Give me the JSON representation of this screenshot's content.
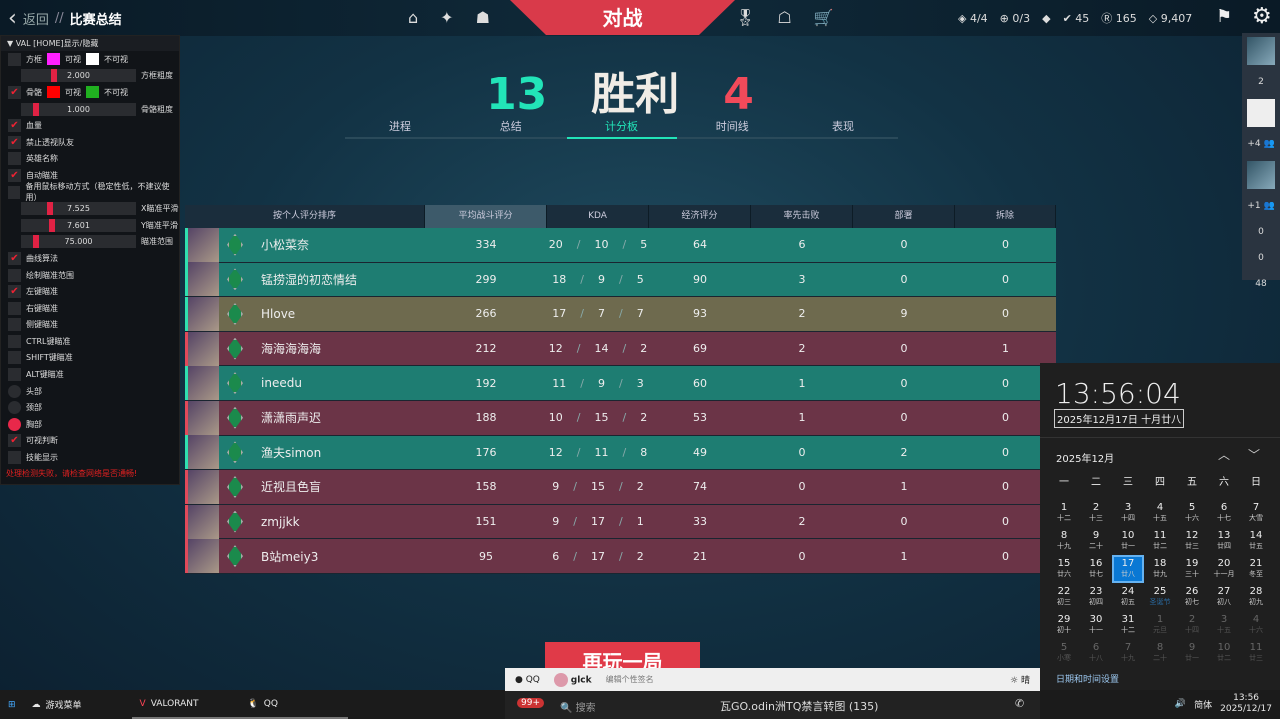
{
  "header": {
    "back": "返回",
    "sep": "//",
    "title": "比赛总结",
    "mode": "对战",
    "nav_left_icons": [
      "home-icon",
      "pass-icon",
      "agent-icon"
    ],
    "nav_right_icons": [
      "medal-icon",
      "collection-icon",
      "cart-icon"
    ],
    "stats": [
      {
        "icon": "diamond-icon",
        "glyph": "◈",
        "value": "4/4"
      },
      {
        "icon": "plus-circle-icon",
        "glyph": "⊕",
        "value": "0/3"
      },
      {
        "icon": "card-icon",
        "glyph": "◆",
        "value": ""
      },
      {
        "icon": "kingdom-credit-icon",
        "glyph": "✔",
        "value": "45"
      },
      {
        "icon": "radianite-icon",
        "glyph": "Ⓡ",
        "value": "165"
      },
      {
        "icon": "vp-icon",
        "glyph": "◇",
        "value": "9,407"
      }
    ]
  },
  "score": {
    "ally": "13",
    "result": "胜利",
    "enemy": "4",
    "ally_color": "#22e4b8",
    "enemy_color": "#f24a5a"
  },
  "tabs": [
    {
      "label": "进程"
    },
    {
      "label": "总结"
    },
    {
      "label": "计分板",
      "active": true
    },
    {
      "label": "时间线"
    },
    {
      "label": "表现"
    }
  ],
  "table": {
    "headers": [
      "按个人评分排序",
      "平均战斗评分",
      "KDA",
      "经济评分",
      "率先击败",
      "部署",
      "拆除"
    ],
    "rows": [
      {
        "team": "ally",
        "name": "小松菜奈",
        "acs": "334",
        "k": "20",
        "d": "10",
        "a": "5",
        "econ": "64",
        "fb": "6",
        "plants": "0",
        "defuses": "0"
      },
      {
        "team": "ally",
        "name": "锰捞湿的初恋情结",
        "acs": "299",
        "k": "18",
        "d": "9",
        "a": "5",
        "econ": "90",
        "fb": "3",
        "plants": "0",
        "defuses": "0"
      },
      {
        "team": "self",
        "name": "Hlove",
        "acs": "266",
        "k": "17",
        "d": "7",
        "a": "7",
        "econ": "93",
        "fb": "2",
        "plants": "9",
        "defuses": "0"
      },
      {
        "team": "enemy",
        "name": "海海海海海",
        "acs": "212",
        "k": "12",
        "d": "14",
        "a": "2",
        "econ": "69",
        "fb": "2",
        "plants": "0",
        "defuses": "1"
      },
      {
        "team": "ally",
        "name": "ineedu",
        "acs": "192",
        "k": "11",
        "d": "9",
        "a": "3",
        "econ": "60",
        "fb": "1",
        "plants": "0",
        "defuses": "0"
      },
      {
        "team": "enemy",
        "name": "潇潇雨声迟",
        "acs": "188",
        "k": "10",
        "d": "15",
        "a": "2",
        "econ": "53",
        "fb": "1",
        "plants": "0",
        "defuses": "0"
      },
      {
        "team": "ally",
        "name": "渔夫simon",
        "acs": "176",
        "k": "12",
        "d": "11",
        "a": "8",
        "econ": "49",
        "fb": "0",
        "plants": "2",
        "defuses": "0"
      },
      {
        "team": "enemy",
        "name": "近视且色盲",
        "acs": "158",
        "k": "9",
        "d": "15",
        "a": "2",
        "econ": "74",
        "fb": "0",
        "plants": "1",
        "defuses": "0"
      },
      {
        "team": "enemy",
        "name": "zmjjkk",
        "acs": "151",
        "k": "9",
        "d": "17",
        "a": "1",
        "econ": "33",
        "fb": "2",
        "plants": "0",
        "defuses": "0"
      },
      {
        "team": "enemy",
        "name": "B站meiy3",
        "acs": "95",
        "k": "6",
        "d": "17",
        "a": "2",
        "econ": "21",
        "fb": "0",
        "plants": "1",
        "defuses": "0"
      }
    ]
  },
  "panel": {
    "title": "VAL [HOME]显示/隐藏",
    "error": "处理检测失败，请检查网络是否通畅!",
    "items": [
      {
        "type": "check",
        "label": "方框",
        "checked": false,
        "colors": [
          {
            "c": "#ff20ff",
            "l": "可视"
          },
          {
            "c": "#ffffff",
            "l": "不可视"
          }
        ]
      },
      {
        "type": "slider",
        "value": "2.000",
        "label": "方框粗度",
        "pos": 0.26
      },
      {
        "type": "check",
        "label": "骨骼",
        "checked": true,
        "colors": [
          {
            "c": "#ff0000",
            "l": "可视"
          },
          {
            "c": "#20b020",
            "l": "不可视"
          }
        ]
      },
      {
        "type": "slider",
        "value": "1.000",
        "label": "骨骼粗度",
        "pos": 0.1
      },
      {
        "type": "check",
        "label": "血量",
        "checked": true
      },
      {
        "type": "check",
        "label": "禁止透视队友",
        "checked": true
      },
      {
        "type": "check",
        "label": "英雄名称",
        "checked": false
      },
      {
        "type": "check",
        "label": "自动瞄准",
        "checked": true
      },
      {
        "type": "check",
        "label": "备用鼠标移动方式（稳定性低，不建议使用）",
        "checked": false
      },
      {
        "type": "slider",
        "value": "7.525",
        "label": "X瞄准平滑",
        "pos": 0.23
      },
      {
        "type": "slider",
        "value": "7.601",
        "label": "Y瞄准平滑",
        "pos": 0.24
      },
      {
        "type": "slider",
        "value": "75.000",
        "label": "瞄准范围",
        "pos": 0.1
      },
      {
        "type": "check",
        "label": "曲线算法",
        "checked": true
      },
      {
        "type": "check",
        "label": "绘制瞄准范围",
        "checked": false
      },
      {
        "type": "check",
        "label": "左键瞄准",
        "checked": true
      },
      {
        "type": "check",
        "label": "右键瞄准",
        "checked": false
      },
      {
        "type": "check",
        "label": "侧键瞄准",
        "checked": false
      },
      {
        "type": "check",
        "label": "CTRL键瞄准",
        "checked": false
      },
      {
        "type": "check",
        "label": "SHIFT键瞄准",
        "checked": false
      },
      {
        "type": "check",
        "label": "ALT键瞄准",
        "checked": false
      },
      {
        "type": "radio",
        "label": "头部",
        "checked": false
      },
      {
        "type": "radio",
        "label": "颈部",
        "checked": false
      },
      {
        "type": "radio",
        "label": "胸部",
        "checked": true
      },
      {
        "type": "check",
        "label": "可视判断",
        "checked": true
      },
      {
        "type": "check",
        "label": "技能显示",
        "checked": false
      }
    ]
  },
  "side": {
    "values": [
      "2",
      "+4 👥",
      "+1 👥",
      "0",
      "0",
      "48"
    ]
  },
  "replay": "再玩一局",
  "calendar": {
    "time": "13:56:04",
    "date": "2025年12月17日 十月廿八",
    "month": "2025年12月",
    "weekdays": [
      "一",
      "二",
      "三",
      "四",
      "五",
      "六",
      "日"
    ],
    "days": [
      [
        "1",
        "十二"
      ],
      [
        "2",
        "十三"
      ],
      [
        "3",
        "十四"
      ],
      [
        "4",
        "十五"
      ],
      [
        "5",
        "十六"
      ],
      [
        "6",
        "十七"
      ],
      [
        "7",
        "大雪"
      ],
      [
        "8",
        "十九"
      ],
      [
        "9",
        "二十"
      ],
      [
        "10",
        "廿一"
      ],
      [
        "11",
        "廿二"
      ],
      [
        "12",
        "廿三"
      ],
      [
        "13",
        "廿四"
      ],
      [
        "14",
        "廿五"
      ],
      [
        "15",
        "廿六"
      ],
      [
        "16",
        "廿七"
      ],
      [
        "17",
        "廿八"
      ],
      [
        "18",
        "廿九"
      ],
      [
        "19",
        "三十"
      ],
      [
        "20",
        "十一月"
      ],
      [
        "21",
        "冬至"
      ],
      [
        "22",
        "初三"
      ],
      [
        "23",
        "初四"
      ],
      [
        "24",
        "初五"
      ],
      [
        "25",
        "圣诞节"
      ],
      [
        "26",
        "初七"
      ],
      [
        "27",
        "初八"
      ],
      [
        "28",
        "初九"
      ],
      [
        "29",
        "初十"
      ],
      [
        "30",
        "十一"
      ],
      [
        "31",
        "十二"
      ],
      [
        "1",
        "元旦"
      ],
      [
        "2",
        "十四"
      ],
      [
        "3",
        "十五"
      ],
      [
        "4",
        "十六"
      ],
      [
        "5",
        "小寒"
      ],
      [
        "6",
        "十八"
      ],
      [
        "7",
        "十九"
      ],
      [
        "8",
        "二十"
      ],
      [
        "9",
        "廿一"
      ],
      [
        "10",
        "廿二"
      ],
      [
        "11",
        "廿三"
      ]
    ],
    "today_index": 16,
    "settings": "日期和时间设置"
  },
  "qq": {
    "app": "QQ",
    "user": "glck",
    "signature": "编辑个性签名",
    "weather": "晴",
    "search": "搜索",
    "chat_title": "瓦GO.odin洲TQ禁言转图 (135)",
    "badge": "99+"
  },
  "taskbar": {
    "items": [
      {
        "label": "游戏菜单"
      },
      {
        "label": "VALORANT"
      },
      {
        "label": "QQ"
      }
    ],
    "ime": "简体",
    "time": "13:56",
    "date": "2025/12/17"
  }
}
